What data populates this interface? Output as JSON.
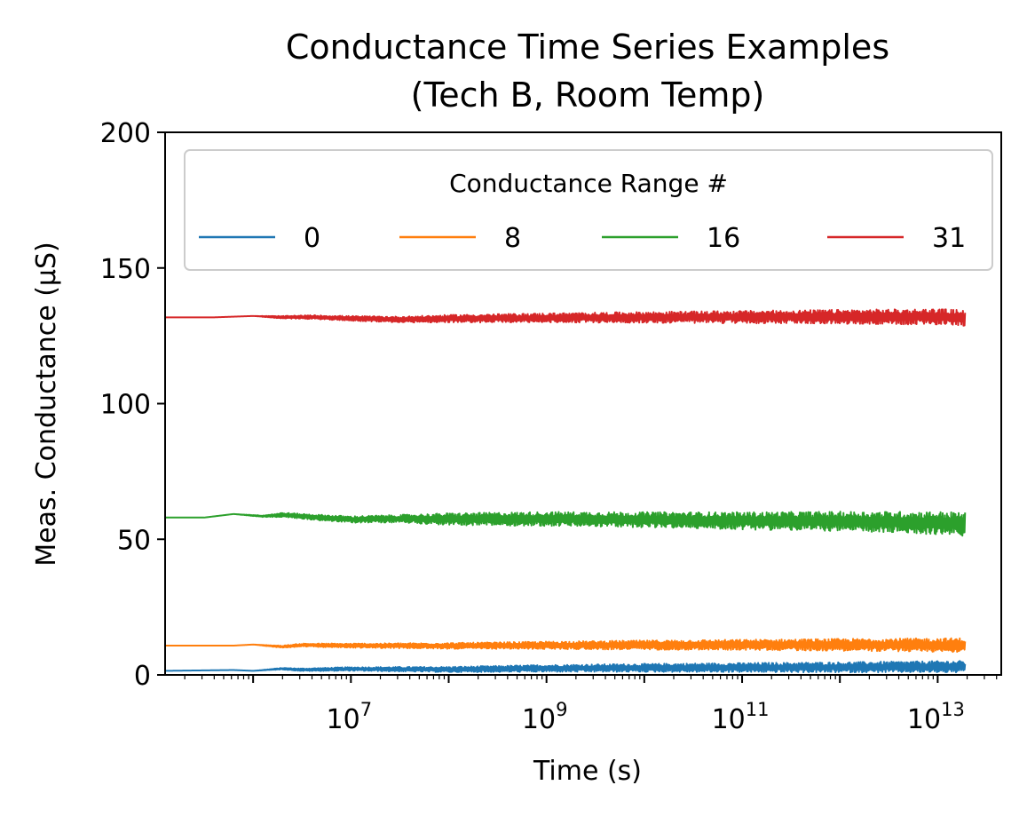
{
  "chart_data": {
    "type": "line",
    "title_lines": [
      "Conductance Time Series Examples",
      "(Tech B, Room Temp)"
    ],
    "xlabel": "Time (s)",
    "ylabel": "Meas. Conductance (µS)",
    "x_scale": "log",
    "xlim_log10": [
      5.1,
      13.65
    ],
    "ylim": [
      0,
      200
    ],
    "x_ticks": [
      {
        "base": "10",
        "exp": "7",
        "log10": 7
      },
      {
        "base": "10",
        "exp": "9",
        "log10": 9
      },
      {
        "base": "10",
        "exp": "11",
        "log10": 11
      },
      {
        "base": "10",
        "exp": "13",
        "log10": 13
      }
    ],
    "y_ticks": [
      {
        "label": "0",
        "value": 0
      },
      {
        "label": "50",
        "value": 50
      },
      {
        "label": "100",
        "value": 100
      },
      {
        "label": "150",
        "value": 150
      },
      {
        "label": "200",
        "value": 200
      }
    ],
    "grid": false,
    "legend": {
      "title": "Conductance Range #",
      "placement": "top, 4 columns"
    },
    "series": [
      {
        "name": "0",
        "color": "#1f77b4",
        "log10_time": [
          5.1,
          5.8,
          6.0,
          6.3,
          6.5,
          7.0,
          8.0,
          9.0,
          10.0,
          11.0,
          12.0,
          13.0,
          13.28
        ],
        "value": [
          1.5,
          1.8,
          1.5,
          2.3,
          1.9,
          2.2,
          2.0,
          2.4,
          2.6,
          2.7,
          2.8,
          3.0,
          3.0
        ],
        "noise": [
          0,
          0,
          0,
          0.3,
          0.5,
          0.7,
          1.0,
          1.3,
          1.5,
          1.7,
          1.9,
          2.1,
          2.2
        ]
      },
      {
        "name": "8",
        "color": "#ff7f0e",
        "log10_time": [
          5.1,
          5.8,
          6.0,
          6.3,
          6.5,
          7.0,
          8.0,
          9.0,
          10.0,
          11.0,
          12.0,
          13.0,
          13.28
        ],
        "value": [
          10.8,
          10.8,
          11.2,
          10.4,
          11.0,
          10.8,
          10.7,
          10.9,
          11.0,
          11.1,
          11.1,
          11.0,
          11.0
        ],
        "noise": [
          0,
          0,
          0,
          0.4,
          0.6,
          0.8,
          1.1,
          1.4,
          1.7,
          1.9,
          2.2,
          2.5,
          2.6
        ]
      },
      {
        "name": "16",
        "color": "#2ca02c",
        "log10_time": [
          5.1,
          5.5,
          5.8,
          6.1,
          6.3,
          6.6,
          7.0,
          7.5,
          8.0,
          9.0,
          10.0,
          11.0,
          12.0,
          13.0,
          13.28
        ],
        "value": [
          58.0,
          58.0,
          59.3,
          58.5,
          59.0,
          58.2,
          57.3,
          57.6,
          57.4,
          57.5,
          57.2,
          56.8,
          56.6,
          56.0,
          55.5
        ],
        "noise": [
          0,
          0,
          0,
          0.3,
          0.8,
          1.0,
          1.2,
          1.4,
          2.2,
          2.6,
          2.8,
          3.2,
          3.6,
          4.2,
          4.4
        ]
      },
      {
        "name": "31",
        "color": "#d62728",
        "log10_time": [
          5.1,
          5.6,
          6.0,
          6.3,
          6.6,
          7.0,
          7.5,
          8.0,
          9.0,
          10.0,
          11.0,
          12.0,
          13.0,
          13.28
        ],
        "value": [
          131.8,
          131.8,
          132.3,
          131.8,
          131.9,
          131.4,
          131.0,
          131.3,
          131.6,
          131.8,
          131.9,
          132.0,
          132.0,
          131.5
        ],
        "noise": [
          0,
          0,
          0,
          0.5,
          0.7,
          0.9,
          1.1,
          1.4,
          1.7,
          2.0,
          2.3,
          2.6,
          2.9,
          3.0
        ]
      }
    ]
  }
}
